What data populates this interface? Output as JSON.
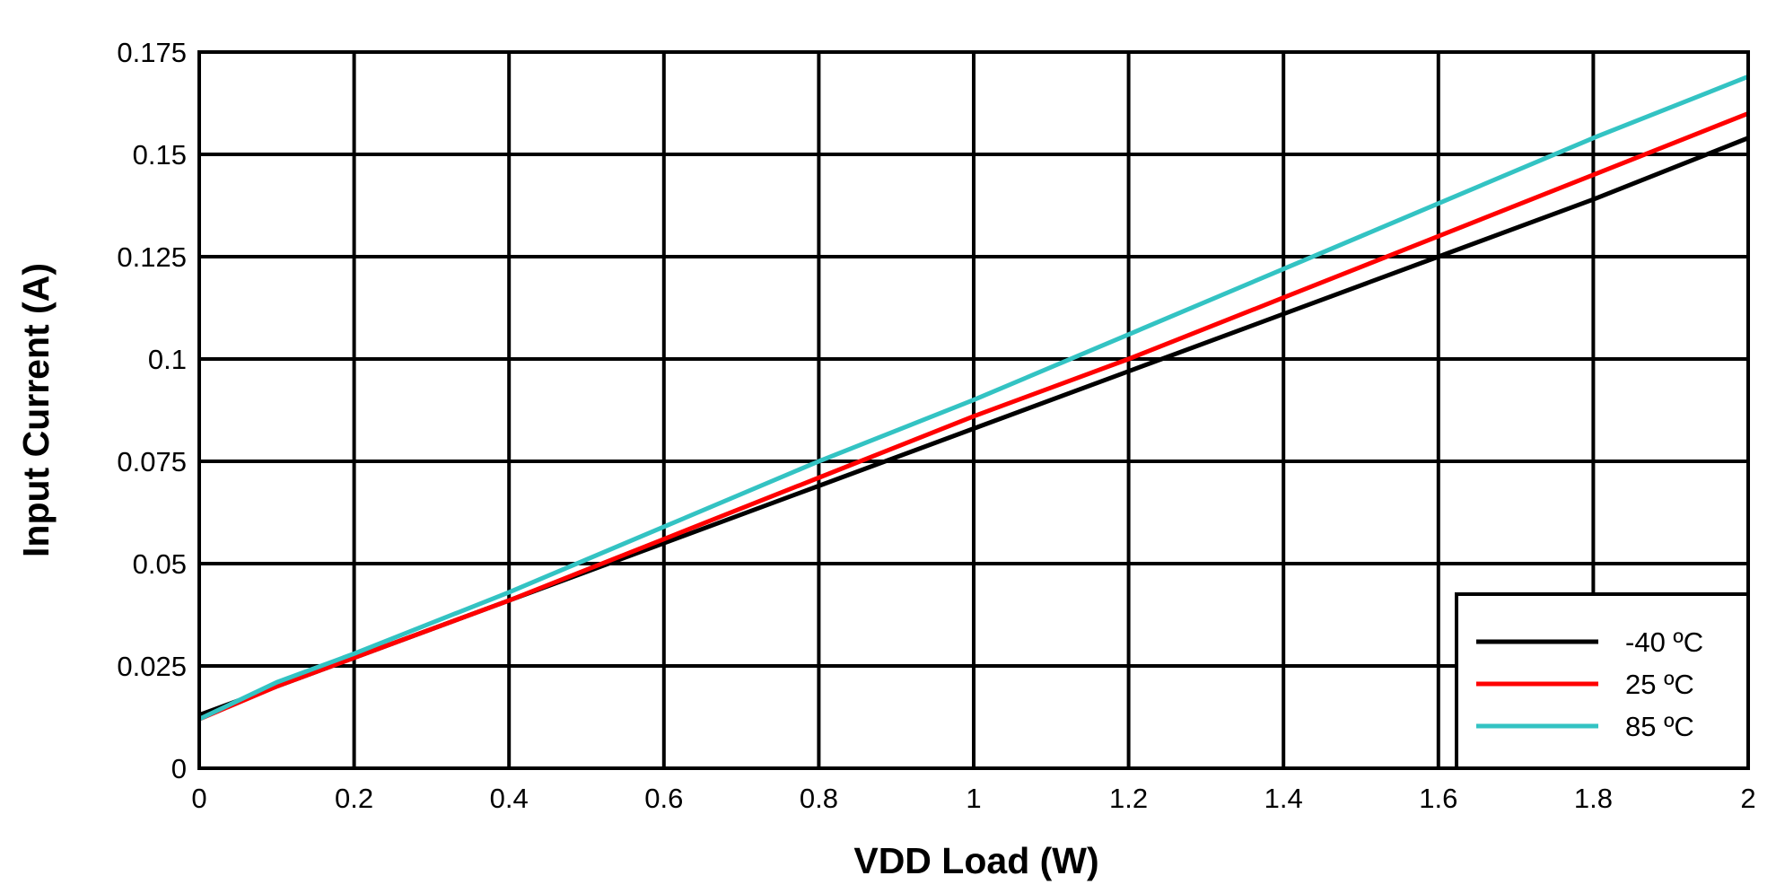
{
  "chart_data": {
    "type": "line",
    "title": "",
    "xlabel": "VDD Load (W)",
    "ylabel": "Input Current (A)",
    "xlim": [
      0,
      2
    ],
    "ylim": [
      0,
      0.175
    ],
    "xticks": [
      "0",
      "0.2",
      "0.4",
      "0.6",
      "0.8",
      "1",
      "1.2",
      "1.4",
      "1.6",
      "1.8",
      "2"
    ],
    "yticks": [
      "0",
      "0.025",
      "0.05",
      "0.075",
      "0.1",
      "0.125",
      "0.15",
      "0.175"
    ],
    "grid": true,
    "legend_position": "bottom-right",
    "series": [
      {
        "name": "-40 ºC",
        "color": "#000000",
        "x": [
          0,
          0.1,
          0.2,
          0.4,
          0.6,
          0.8,
          1.0,
          1.2,
          1.4,
          1.6,
          1.8,
          2.0
        ],
        "y": [
          0.013,
          0.02,
          0.027,
          0.041,
          0.055,
          0.069,
          0.083,
          0.097,
          0.111,
          0.125,
          0.139,
          0.154
        ]
      },
      {
        "name": "25 ºC",
        "color": "#ff0000",
        "x": [
          0,
          0.1,
          0.2,
          0.4,
          0.6,
          0.8,
          1.0,
          1.2,
          1.4,
          1.6,
          1.8,
          2.0
        ],
        "y": [
          0.012,
          0.02,
          0.027,
          0.041,
          0.056,
          0.071,
          0.086,
          0.1,
          0.115,
          0.13,
          0.145,
          0.16
        ]
      },
      {
        "name": "85 ºC",
        "color": "#33c3c3",
        "x": [
          0,
          0.1,
          0.2,
          0.4,
          0.6,
          0.8,
          1.0,
          1.2,
          1.4,
          1.6,
          1.8,
          2.0
        ],
        "y": [
          0.012,
          0.021,
          0.028,
          0.043,
          0.059,
          0.075,
          0.09,
          0.106,
          0.122,
          0.138,
          0.154,
          0.169
        ]
      }
    ]
  }
}
